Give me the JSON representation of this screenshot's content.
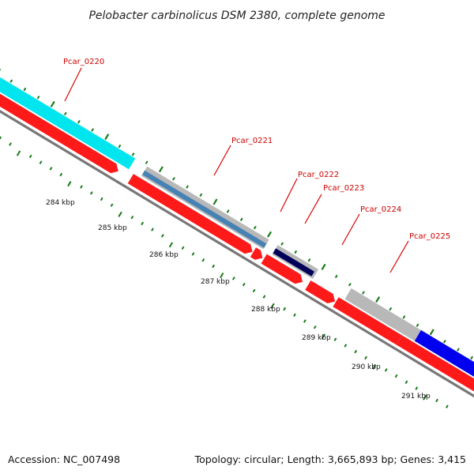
{
  "title": "Pelobacter carbinolicus DSM 2380, complete genome",
  "footer": {
    "accession": "Accession: NC_007498",
    "summary": "Topology: circular; Length: 3,665,893 bp; Genes: 3,415"
  },
  "diagram": {
    "colors": {
      "label": "#cc0000",
      "callout": "#dd0000",
      "backbone": "#777777",
      "tick": "#1a7a1a",
      "cds": "#ff1a1a",
      "cyan": "#00e5ee",
      "gray": "#b8b8b8",
      "steelblue": "#4682b4",
      "navy": "#00005a",
      "blue": "#0000ee"
    },
    "kbp_labels": [
      "284 kbp",
      "285 kbp",
      "286 kbp",
      "287 kbp",
      "288 kbp",
      "289 kbp",
      "290 kbp",
      "291 kbp"
    ],
    "genes": [
      {
        "label": "Pcar_0220",
        "color": "cyan"
      },
      {
        "label": "Pcar_0221",
        "color": "steelblue"
      },
      {
        "label": "Pcar_0222",
        "color": "navy"
      },
      {
        "label": "Pcar_0223",
        "color": "cds"
      },
      {
        "label": "Pcar_0224",
        "color": "gray"
      },
      {
        "label": "Pcar_0225",
        "color": "blue"
      }
    ]
  }
}
